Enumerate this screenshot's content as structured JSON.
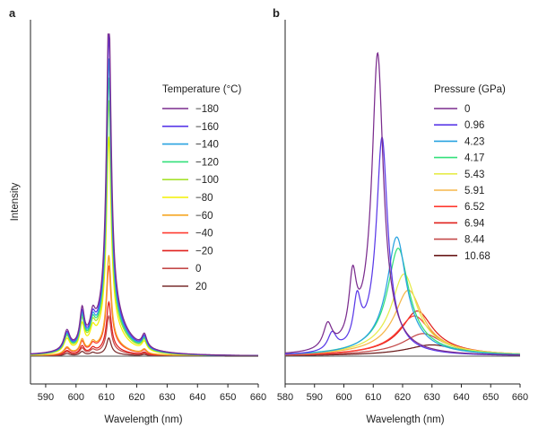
{
  "chart_data": [
    {
      "panel": "a",
      "type": "line",
      "xlabel": "Wavelength (nm)",
      "ylabel": "Intensity",
      "xlim": [
        585,
        660
      ],
      "ylim": [
        0,
        1
      ],
      "xticks": [
        590,
        600,
        610,
        620,
        630,
        640,
        650,
        660
      ],
      "legend_title": "Temperature (°C)",
      "legend_position": "right",
      "series": [
        {
          "name": "−180",
          "color": "#7b2d8e",
          "peak_x": 610.8,
          "peak_y": 1.0,
          "shoulder_y": 0.108,
          "tail_y": 0.04
        },
        {
          "name": "−160",
          "color": "#5a3ae8",
          "peak_x": 610.8,
          "peak_y": 0.927,
          "shoulder_y": 0.1,
          "tail_y": 0.037
        },
        {
          "name": "−140",
          "color": "#29a3e0",
          "peak_x": 610.8,
          "peak_y": 0.855,
          "shoulder_y": 0.095,
          "tail_y": 0.035
        },
        {
          "name": "−120",
          "color": "#33e07a",
          "peak_x": 610.8,
          "peak_y": 0.8,
          "shoulder_y": 0.09,
          "tail_y": 0.033
        },
        {
          "name": "−100",
          "color": "#a6e22e",
          "peak_x": 610.8,
          "peak_y": 0.735,
          "shoulder_y": 0.085,
          "tail_y": 0.031
        },
        {
          "name": "−80",
          "color": "#f4f000",
          "peak_x": 610.8,
          "peak_y": 0.63,
          "shoulder_y": 0.075,
          "tail_y": 0.028
        },
        {
          "name": "−60",
          "color": "#f5a623",
          "peak_x": 610.8,
          "peak_y": 0.29,
          "shoulder_y": 0.04,
          "tail_y": 0.014
        },
        {
          "name": "−40",
          "color": "#ff3b30",
          "peak_x": 610.8,
          "peak_y": 0.26,
          "shoulder_y": 0.035,
          "tail_y": 0.012
        },
        {
          "name": "−20",
          "color": "#e0201c",
          "peak_x": 610.8,
          "peak_y": 0.155,
          "shoulder_y": 0.025,
          "tail_y": 0.008
        },
        {
          "name": "0",
          "color": "#c44a4a",
          "peak_x": 610.8,
          "peak_y": 0.115,
          "shoulder_y": 0.02,
          "tail_y": 0.006
        },
        {
          "name": "20",
          "color": "#7a2e2e",
          "peak_x": 610.8,
          "peak_y": 0.052,
          "shoulder_y": 0.012,
          "tail_y": 0.004
        }
      ]
    },
    {
      "panel": "b",
      "type": "line",
      "xlabel": "Wavelength (nm)",
      "ylabel": "",
      "xlim": [
        580,
        660
      ],
      "ylim": [
        0,
        1
      ],
      "xticks": [
        580,
        590,
        600,
        610,
        620,
        630,
        640,
        650,
        660
      ],
      "legend_title": "Pressure (GPa)",
      "legend_position": "right",
      "series": [
        {
          "name": "0",
          "color": "#7b2d8e",
          "peak_x": 611.5,
          "peak_y": 0.935,
          "width": 2.2,
          "tail_y": 0
        },
        {
          "name": "0.96",
          "color": "#5a3ae8",
          "peak_x": 613.0,
          "peak_y": 0.675,
          "width": 2.2,
          "tail_y": 0
        },
        {
          "name": "4.23",
          "color": "#29a3e0",
          "peak_x": 618.0,
          "peak_y": 0.37,
          "width": 3.8,
          "tail_y": 0
        },
        {
          "name": "4.17",
          "color": "#33e07a",
          "peak_x": 618.5,
          "peak_y": 0.335,
          "width": 4.2,
          "tail_y": 0
        },
        {
          "name": "5.43",
          "color": "#e6ec4a",
          "peak_x": 620.5,
          "peak_y": 0.255,
          "width": 5.0,
          "tail_y": 0
        },
        {
          "name": "5.91",
          "color": "#f5b74a",
          "peak_x": 622.0,
          "peak_y": 0.205,
          "width": 5.5,
          "tail_y": 0
        },
        {
          "name": "6.52",
          "color": "#ff3b30",
          "peak_x": 624.0,
          "peak_y": 0.125,
          "width": 6.5,
          "tail_y": 0
        },
        {
          "name": "6.94",
          "color": "#e0201c",
          "peak_x": 625.0,
          "peak_y": 0.14,
          "width": 6.2,
          "tail_y": 0
        },
        {
          "name": "8.44",
          "color": "#c44a4a",
          "peak_x": 627.0,
          "peak_y": 0.07,
          "width": 8.0,
          "tail_y": 0
        },
        {
          "name": "10.68",
          "color": "#6b1b1b",
          "peak_x": 630.0,
          "peak_y": 0.035,
          "width": 10.0,
          "tail_y": 0
        }
      ]
    }
  ]
}
